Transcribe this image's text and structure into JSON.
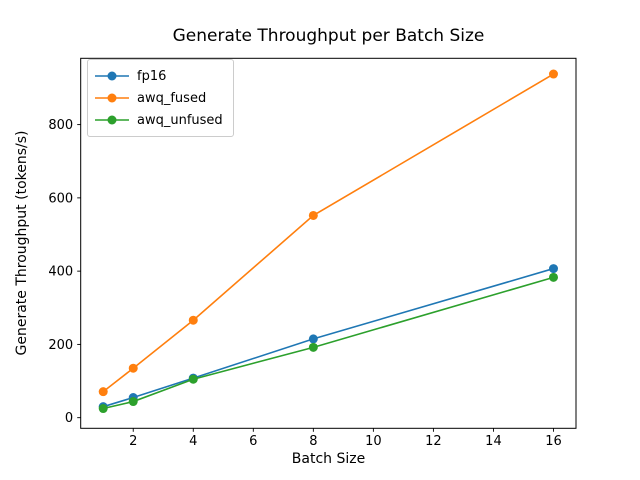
{
  "chart_data": {
    "type": "line",
    "title": "Generate Throughput per Batch Size",
    "xlabel": "Batch Size",
    "ylabel": "Generate Throughput (tokens/s)",
    "x": [
      1,
      2,
      4,
      8,
      16
    ],
    "series": [
      {
        "name": "fp16",
        "color": "#1f77b4",
        "values": [
          30,
          55,
          108,
          215,
          407
        ]
      },
      {
        "name": "awq_fused",
        "color": "#ff7f0e",
        "values": [
          71,
          135,
          266,
          552,
          938
        ]
      },
      {
        "name": "awq_unfused",
        "color": "#2ca02c",
        "values": [
          25,
          44,
          105,
          192,
          383
        ]
      }
    ],
    "xticks": [
      2,
      4,
      6,
      8,
      10,
      12,
      14,
      16
    ],
    "yticks": [
      0,
      200,
      400,
      600,
      800
    ],
    "xlim": [
      0.25,
      16.75
    ],
    "ylim": [
      -29,
      981
    ],
    "grid": false,
    "legend_position": "upper left",
    "marker": "o"
  }
}
